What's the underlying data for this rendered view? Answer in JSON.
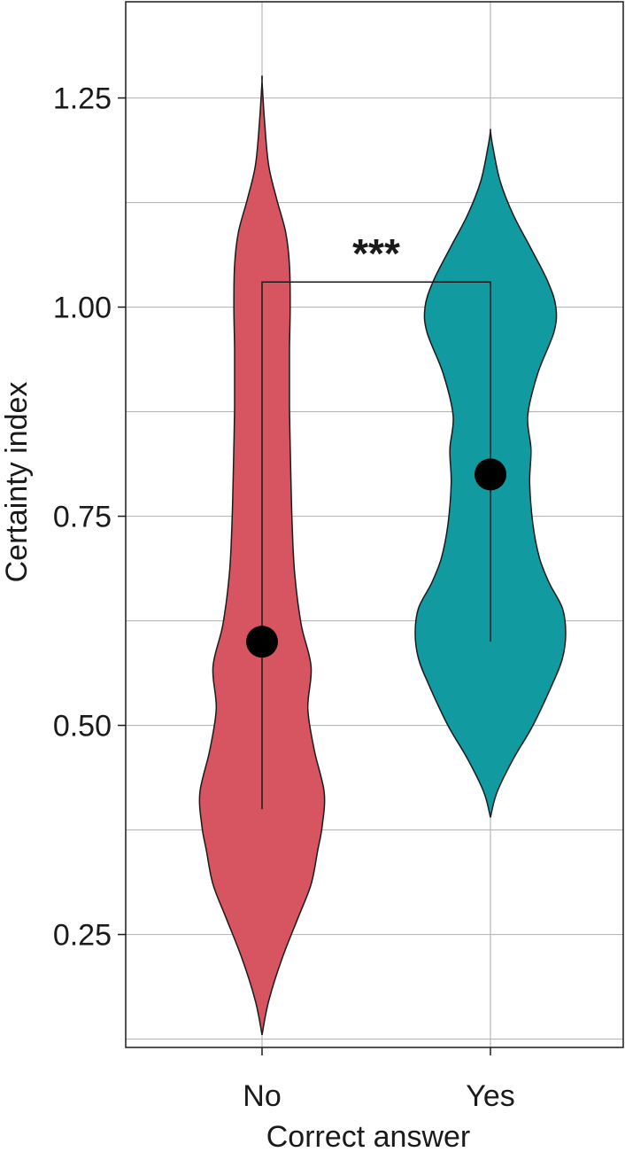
{
  "chart_data": {
    "type": "violin",
    "xlabel": "Correct answer",
    "ylabel": "Certainty index",
    "ylim": [
      0.115,
      1.365
    ],
    "y_ticks": [
      0.25,
      0.5,
      0.75,
      1.0,
      1.25
    ],
    "y_tick_labels": [
      "0.25",
      "0.50",
      "0.75",
      "1.00",
      "1.25"
    ],
    "y_minor_grid": [
      0.125,
      0.375,
      0.625,
      0.875,
      1.125
    ],
    "grid": true,
    "categories": [
      "No",
      "Yes"
    ],
    "groups": [
      {
        "category": "No",
        "color": "#d65561",
        "median": 0.6,
        "range": [
          0.4,
          1.0
        ],
        "min": 0.13,
        "max": 1.27,
        "density": [
          [
            0.13,
            0.0
          ],
          [
            0.17,
            0.01
          ],
          [
            0.22,
            0.03
          ],
          [
            0.27,
            0.055
          ],
          [
            0.31,
            0.075
          ],
          [
            0.35,
            0.085
          ],
          [
            0.38,
            0.092
          ],
          [
            0.42,
            0.095
          ],
          [
            0.47,
            0.08
          ],
          [
            0.52,
            0.07
          ],
          [
            0.57,
            0.075
          ],
          [
            0.62,
            0.06
          ],
          [
            0.68,
            0.05
          ],
          [
            0.74,
            0.046
          ],
          [
            0.8,
            0.044
          ],
          [
            0.88,
            0.042
          ],
          [
            0.95,
            0.042
          ],
          [
            1.0,
            0.043
          ],
          [
            1.05,
            0.042
          ],
          [
            1.09,
            0.036
          ],
          [
            1.13,
            0.022
          ],
          [
            1.17,
            0.01
          ],
          [
            1.22,
            0.004
          ],
          [
            1.27,
            0.0
          ]
        ]
      },
      {
        "category": "Yes",
        "color": "#119a9f",
        "median": 0.8,
        "range": [
          0.6,
          1.0
        ],
        "min": 0.39,
        "max": 1.21,
        "density": [
          [
            0.39,
            0.0
          ],
          [
            0.42,
            0.01
          ],
          [
            0.46,
            0.035
          ],
          [
            0.5,
            0.065
          ],
          [
            0.55,
            0.095
          ],
          [
            0.58,
            0.11
          ],
          [
            0.61,
            0.115
          ],
          [
            0.64,
            0.11
          ],
          [
            0.67,
            0.09
          ],
          [
            0.7,
            0.075
          ],
          [
            0.74,
            0.065
          ],
          [
            0.79,
            0.06
          ],
          [
            0.83,
            0.062
          ],
          [
            0.87,
            0.057
          ],
          [
            0.92,
            0.072
          ],
          [
            0.97,
            0.097
          ],
          [
            1.0,
            0.1
          ],
          [
            1.03,
            0.088
          ],
          [
            1.07,
            0.062
          ],
          [
            1.11,
            0.035
          ],
          [
            1.15,
            0.015
          ],
          [
            1.19,
            0.004
          ],
          [
            1.21,
            0.0
          ]
        ]
      }
    ],
    "comparisons": [
      {
        "groups": [
          "No",
          "Yes"
        ],
        "y": 1.03,
        "label": "***"
      }
    ]
  }
}
